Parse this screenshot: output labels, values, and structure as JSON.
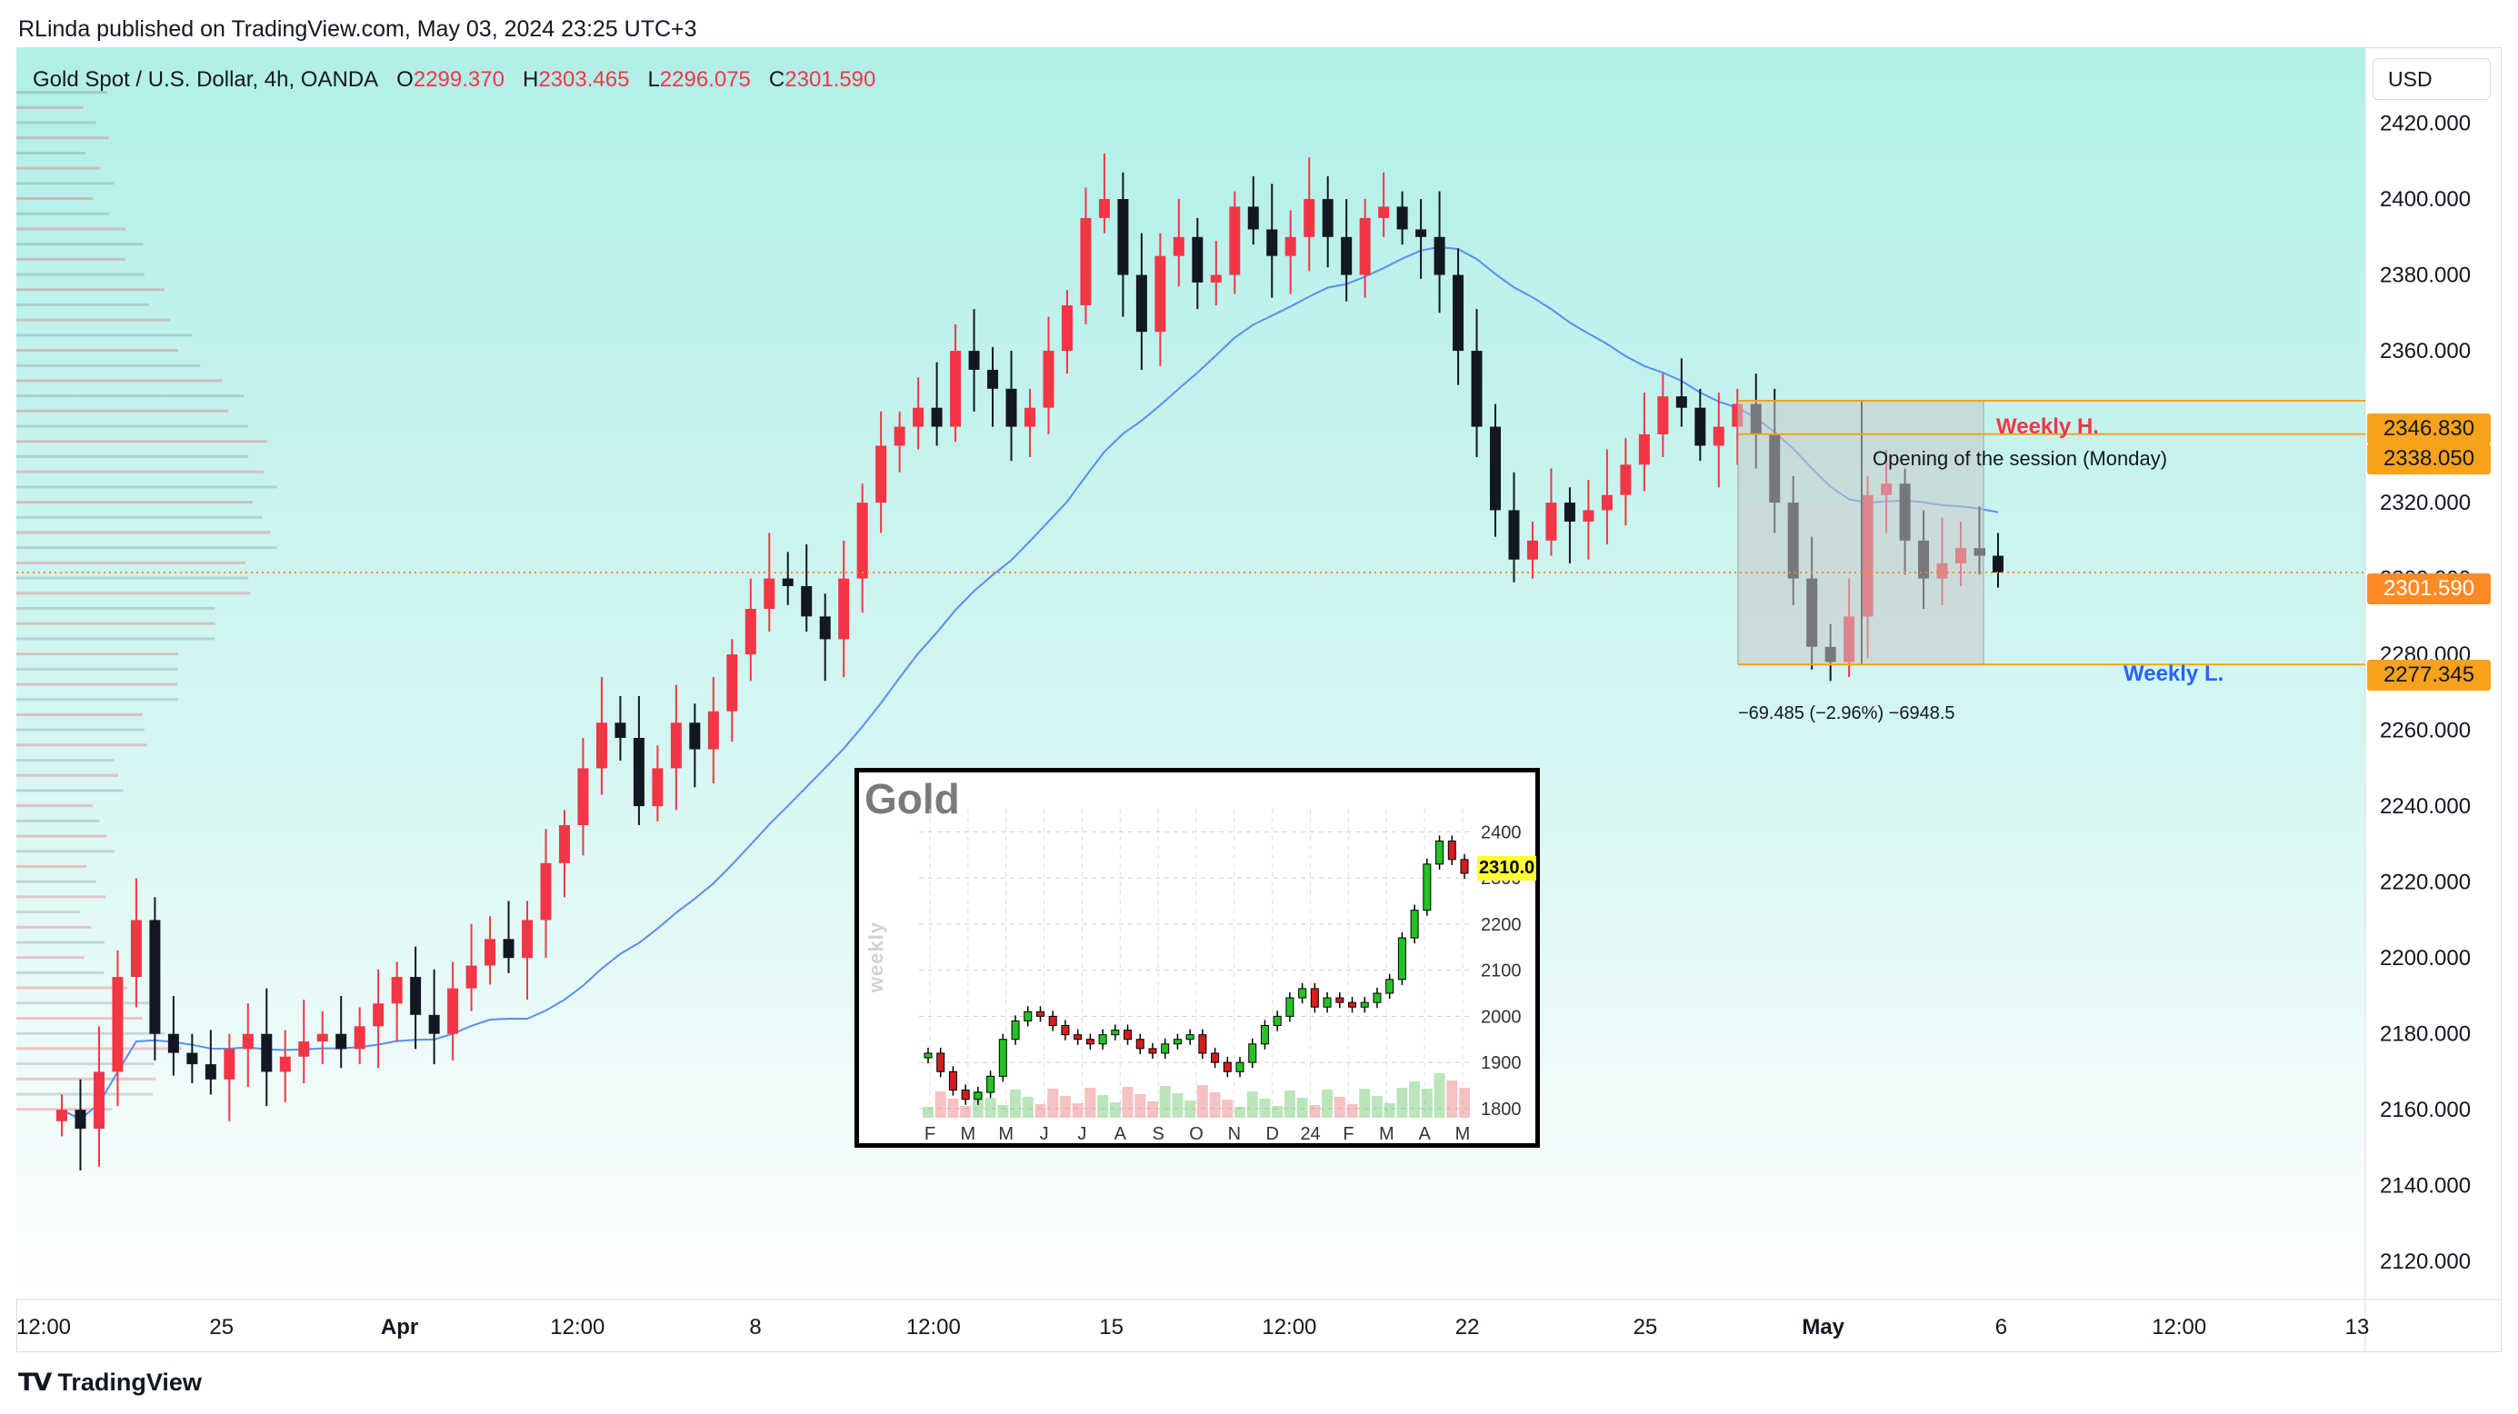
{
  "header": {
    "publisher": "RLinda published on TradingView.com, May 03, 2024 23:25 UTC+3"
  },
  "legend": {
    "symbol": "Gold Spot / U.S. Dollar, 4h, OANDA",
    "o_label": "O",
    "o_value": "2299.370",
    "h_label": "H",
    "h_value": "2303.465",
    "l_label": "L",
    "l_value": "2296.075",
    "c_label": "C",
    "c_value": "2301.590"
  },
  "currency": "USD",
  "footer": {
    "brand": "TradingView"
  },
  "price_axis": {
    "ticks": [
      "2420.000",
      "2400.000",
      "2380.000",
      "2360.000",
      "2340.000",
      "2320.000",
      "2300.000",
      "2280.000",
      "2260.000",
      "2240.000",
      "2220.000",
      "2200.000",
      "2180.000",
      "2160.000",
      "2140.000",
      "2120.000"
    ]
  },
  "time_axis": {
    "labels": [
      "12:00",
      "25",
      "Apr",
      "12:00",
      "8",
      "12:00",
      "15",
      "12:00",
      "22",
      "25",
      "May",
      "6",
      "12:00",
      "13"
    ]
  },
  "annotations": {
    "weekly_high_label": "Weekly H.",
    "weekly_high_price": "2346.830",
    "session_open_label": "Opening of the session (Monday)",
    "session_open_price": "2338.050",
    "last_price": "2301.590",
    "weekly_low_label": "Weekly L.",
    "weekly_low_price": "2277.345",
    "measure_text": "−69.485 (−2.96%) −6948.5"
  },
  "colors": {
    "up": "#f23645",
    "down": "#131722",
    "ma": "#5b8def",
    "bg_top": "#b2efe9",
    "bg_bottom": "#ffffff",
    "annotation_line": "#f7a21b",
    "weekly_high": "#f23645",
    "weekly_low": "#2962ff"
  },
  "chart_data": [
    {
      "type": "candlestick",
      "title": "Gold Spot / U.S. Dollar, 4h, OANDA",
      "interval": "4h",
      "ylim": [
        2110,
        2440
      ],
      "overlays": [
        "moving-average",
        "volume-profile (left)"
      ],
      "series": [
        {
          "name": "Gold Spot / U.S. Dollar",
          "values": [
            2160,
            2155,
            2170,
            2195,
            2210,
            2180,
            2175,
            2172,
            2168,
            2176,
            2180,
            2170,
            2174,
            2178,
            2180,
            2176,
            2182,
            2188,
            2195,
            2185,
            2180,
            2192,
            2198,
            2205,
            2200,
            2210,
            2225,
            2235,
            2250,
            2262,
            2258,
            2240,
            2250,
            2262,
            2255,
            2265,
            2280,
            2292,
            2300,
            2298,
            2290,
            2284,
            2300,
            2320,
            2335,
            2340,
            2345,
            2340,
            2360,
            2355,
            2350,
            2340,
            2345,
            2360,
            2372,
            2395,
            2400,
            2380,
            2365,
            2385,
            2390,
            2378,
            2380,
            2398,
            2392,
            2385,
            2390,
            2400,
            2390,
            2380,
            2395,
            2398,
            2392,
            2390,
            2380,
            2360,
            2340,
            2318,
            2305,
            2310,
            2320,
            2315,
            2318,
            2322,
            2330,
            2338,
            2348,
            2345,
            2335,
            2340,
            2346,
            2338,
            2320,
            2300,
            2282,
            2278,
            2290,
            2322,
            2325,
            2310,
            2300,
            2304,
            2308,
            2306,
            2301.59
          ]
        }
      ],
      "last": {
        "open": 2299.37,
        "high": 2303.465,
        "low": 2296.075,
        "close": 2301.59
      }
    },
    {
      "type": "candlestick",
      "title": "Gold",
      "interval": "weekly",
      "ylim": [
        1780,
        2450
      ],
      "x_tick_labels": [
        "F",
        "M",
        "M",
        "J",
        "J",
        "A",
        "S",
        "O",
        "N",
        "D",
        "24",
        "F",
        "M",
        "A",
        "M"
      ],
      "y_tick_labels": [
        "2400",
        "2300",
        "2200",
        "2100",
        "2000",
        "1900",
        "1800"
      ],
      "last_price": "2310.0",
      "series": [
        {
          "name": "Gold",
          "values": [
            1920,
            1880,
            1840,
            1820,
            1835,
            1870,
            1950,
            1990,
            2010,
            2000,
            1980,
            1960,
            1950,
            1940,
            1960,
            1970,
            1950,
            1930,
            1920,
            1940,
            1950,
            1960,
            1920,
            1900,
            1880,
            1900,
            1940,
            1980,
            2000,
            2040,
            2060,
            2020,
            2040,
            2030,
            2020,
            2030,
            2050,
            2080,
            2170,
            2230,
            2330,
            2380,
            2340,
            2310
          ]
        }
      ]
    }
  ]
}
